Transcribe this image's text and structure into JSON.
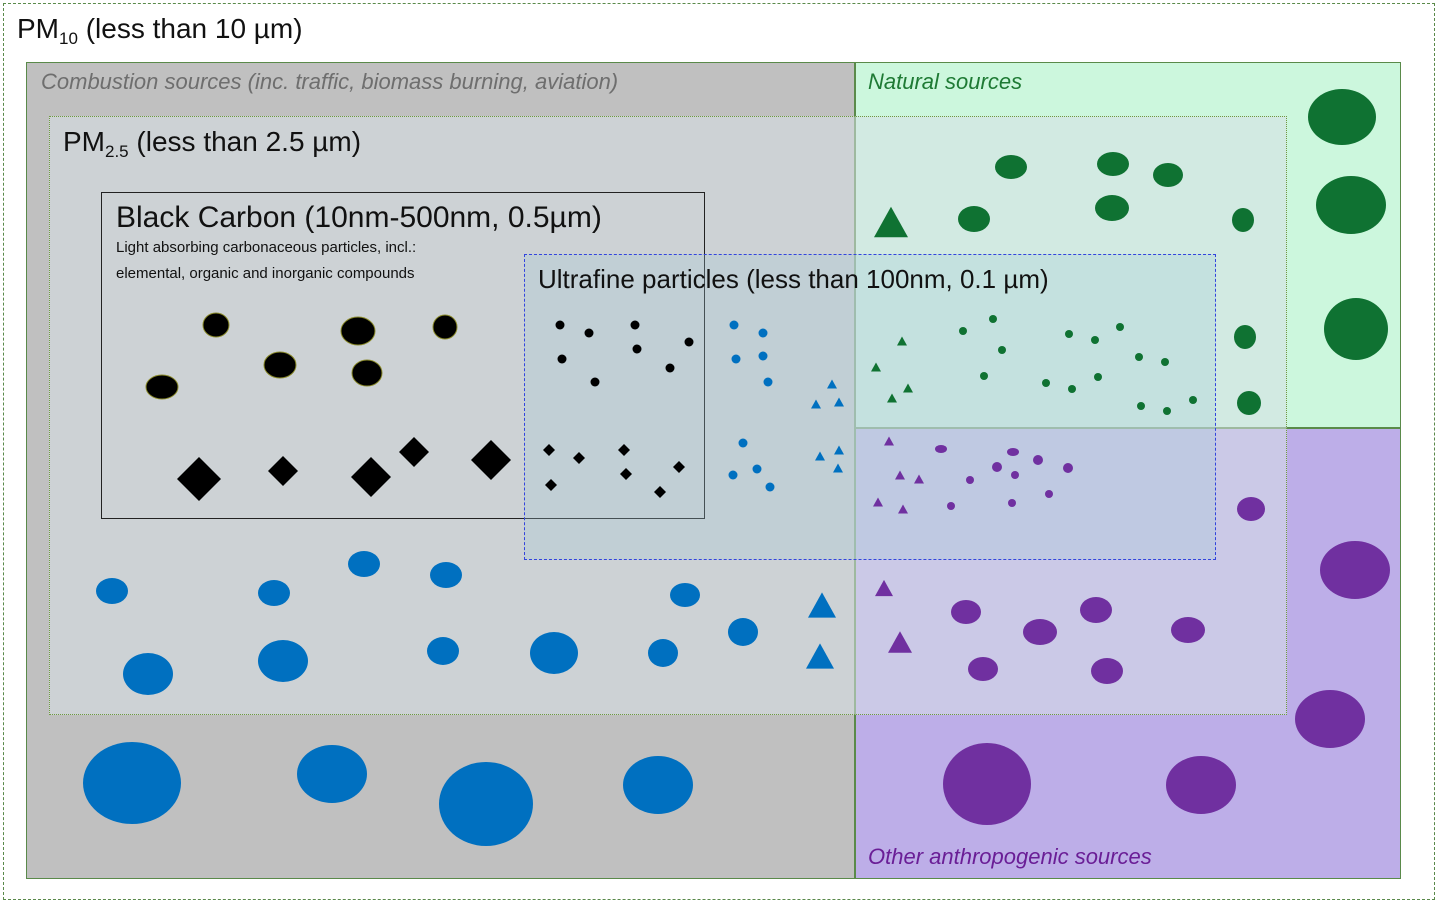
{
  "pm10": {
    "label": "PM",
    "sub": "10",
    "suffix": "(less than 10 µm)"
  },
  "pm25": {
    "label": "PM",
    "sub": "2.5",
    "suffix": "(less than 2.5 µm)"
  },
  "combustion": {
    "label": "Combustion sources (inc. traffic, biomass burning, aviation)",
    "color": "#c0c0c0"
  },
  "natural": {
    "label": "Natural sources",
    "color": "#ccf7dd"
  },
  "other": {
    "label": "Other anthropogenic sources",
    "color": "#bdaee8"
  },
  "black_carbon": {
    "title": "Black Carbon (10nm-500nm, 0.5µm)",
    "desc_line1": "Light absorbing carbonaceous particles, incl.:",
    "desc_line2": "elemental, organic and inorganic compounds"
  },
  "ultrafine": {
    "title": "Ultrafine particles (less than 100nm, 0.1 µm)"
  },
  "colors": {
    "black": "#000000",
    "blue": "#0070c0",
    "green": "#0f7232",
    "purple": "#7030a0"
  }
}
